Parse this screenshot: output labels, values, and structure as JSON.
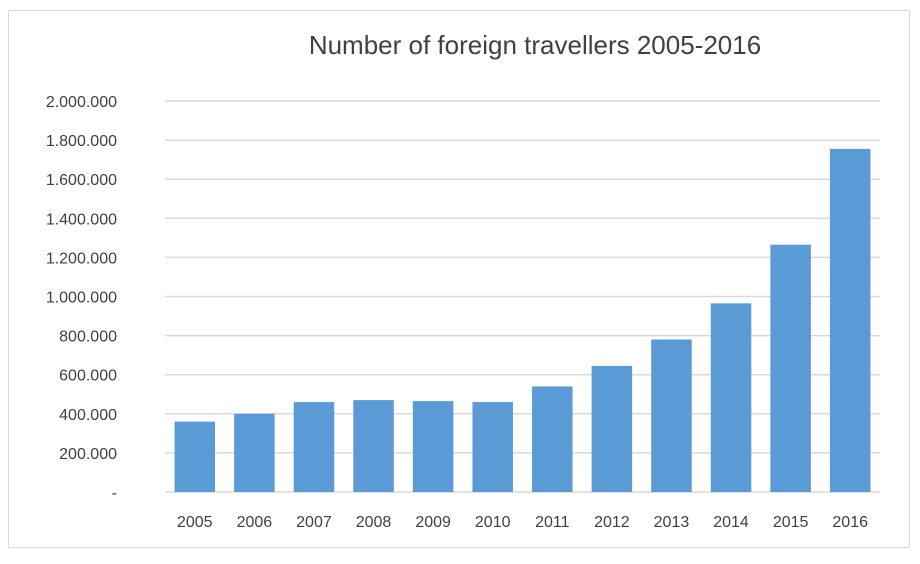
{
  "chart_data": {
    "type": "bar",
    "title": "Number of foreign travellers 2005-2016",
    "xlabel": "",
    "ylabel": "",
    "categories": [
      "2005",
      "2006",
      "2007",
      "2008",
      "2009",
      "2010",
      "2011",
      "2012",
      "2013",
      "2014",
      "2015",
      "2016"
    ],
    "values": [
      360000,
      400000,
      460000,
      470000,
      465000,
      460000,
      540000,
      645000,
      780000,
      965000,
      1265000,
      1755000
    ],
    "ylim": [
      0,
      2000000
    ],
    "y_ticks": [
      0,
      200000,
      400000,
      600000,
      800000,
      1000000,
      1200000,
      1400000,
      1600000,
      1800000,
      2000000
    ],
    "y_tick_labels": [
      "-",
      "200.000",
      "400.000",
      "600.000",
      "800.000",
      "1.000.000",
      "1.200.000",
      "1.400.000",
      "1.600.000",
      "1.800.000",
      "2.000.000"
    ],
    "grid": true,
    "legend": "none",
    "bar_color": "#5b9bd5",
    "grid_color": "#d9d9d9"
  }
}
